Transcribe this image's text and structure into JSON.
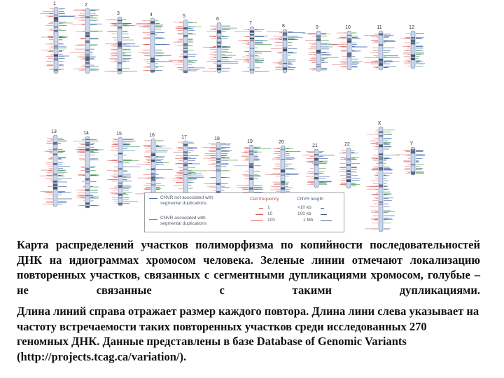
{
  "chromosomes_top": [
    "1",
    "2",
    "3",
    "4",
    "5",
    "6",
    "7",
    "8",
    "9",
    "10",
    "11",
    "12"
  ],
  "chromosomes_bottom": [
    "13",
    "14",
    "15",
    "16",
    "17",
    "18",
    "19",
    "20",
    "21",
    "22",
    "X",
    "Y"
  ],
  "legend": {
    "not_associated": "CNVR not associated with segmental duplications",
    "not_associated_l1": "CNVR not associated with",
    "not_associated_l2": "segmental duplications",
    "associated_l1": "CNVR associated with",
    "associated_l2": "segmental duplications",
    "cell_frequency_title": "Cell frequency",
    "freq_values": [
      "1",
      "10",
      "100"
    ],
    "cnvr_length_title": "CNVR length",
    "length_values": [
      "<10 kb",
      "100 kb",
      "1 Mb"
    ]
  },
  "colors": {
    "green": "#5aa35a",
    "blue": "#4a6bb0",
    "red": "#d9534f",
    "chromosome_fill": "#c9d6ec",
    "band": "#44506a"
  },
  "caption": {
    "paragraph1": "Карта распределений участков полиморфизма по копийности последовательностей ДНК на идиограммах хромосом человека. Зеленые линии отмечают локализацию повторенных участков, связанных с сегментными дупликациями хромосом, голубые – не связанные с такими дупликациями.",
    "paragraph2": "Длина линий справа отражает размер каждого повтора. Длина лини слева указывает на частоту встречаемости таких повторенных участков среди исследованных 270 геномных ДНК. Данные представлены в базе Database of Genomic Variants (http://projects.tcag.ca/variation/)."
  }
}
